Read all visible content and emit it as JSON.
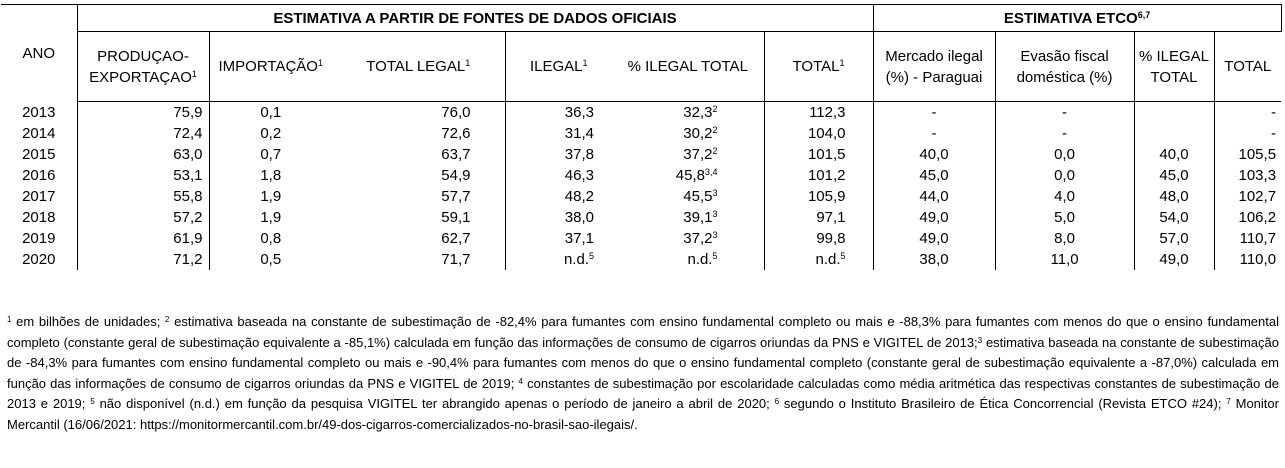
{
  "group_headers": {
    "official": "ESTIMATIVA A PARTIR DE FONTES DE DADOS OFICIAIS",
    "etco": "ESTIMATIVA ETCO",
    "etco_sup": "6,7"
  },
  "columns": {
    "ano": "ANO",
    "producao": "PRODUÇAO-EXPORTAÇAO",
    "producao_sup": "1",
    "importacao": "IMPORTAÇÃO",
    "importacao_sup": "1",
    "total_legal": "TOTAL LEGAL",
    "total_legal_sup": "1",
    "ilegal": "ILEGAL",
    "ilegal_sup": "1",
    "pct_ilegal_total": "% ILEGAL TOTAL",
    "total": "TOTAL",
    "total_sup": "1",
    "mercado": "Mercado ilegal (%) - Paraguai",
    "evasao": "Evasão fiscal doméstica (%)",
    "etco_pct_ilegal": "% ILEGAL TOTAL",
    "etco_total": "TOTAL"
  },
  "rows": [
    {
      "ano": "2013",
      "producao": "75,9",
      "importacao": "0,1",
      "total_legal": "76,0",
      "ilegal": "36,3",
      "ilegal_sup": "",
      "pct": "32,3",
      "pct_sup": "2",
      "total": "112,3",
      "total_sup": "",
      "mercado": "-",
      "evasao": "-",
      "etco_pct": "",
      "etco_total": "-"
    },
    {
      "ano": "2014",
      "producao": "72,4",
      "importacao": "0,2",
      "total_legal": "72,6",
      "ilegal": "31,4",
      "ilegal_sup": "",
      "pct": "30,2",
      "pct_sup": "2",
      "total": "104,0",
      "total_sup": "",
      "mercado": "-",
      "evasao": "-",
      "etco_pct": "",
      "etco_total": "-"
    },
    {
      "ano": "2015",
      "producao": "63,0",
      "importacao": "0,7",
      "total_legal": "63,7",
      "ilegal": "37,8",
      "ilegal_sup": "",
      "pct": "37,2",
      "pct_sup": "2",
      "total": "101,5",
      "total_sup": "",
      "mercado": "40,0",
      "evasao": "0,0",
      "etco_pct": "40,0",
      "etco_total": "105,5"
    },
    {
      "ano": "2016",
      "producao": "53,1",
      "importacao": "1,8",
      "total_legal": "54,9",
      "ilegal": "46,3",
      "ilegal_sup": "",
      "pct": "45,8",
      "pct_sup": "3,4",
      "total": "101,2",
      "total_sup": "",
      "mercado": "45,0",
      "evasao": "0,0",
      "etco_pct": "45,0",
      "etco_total": "103,3"
    },
    {
      "ano": "2017",
      "producao": "55,8",
      "importacao": "1,9",
      "total_legal": "57,7",
      "ilegal": "48,2",
      "ilegal_sup": "",
      "pct": "45,5",
      "pct_sup": "3",
      "total": "105,9",
      "total_sup": "",
      "mercado": "44,0",
      "evasao": "4,0",
      "etco_pct": "48,0",
      "etco_total": "102,7"
    },
    {
      "ano": "2018",
      "producao": "57,2",
      "importacao": "1,9",
      "total_legal": "59,1",
      "ilegal": "38,0",
      "ilegal_sup": "",
      "pct": "39,1",
      "pct_sup": "3",
      "total": "97,1",
      "total_sup": "",
      "mercado": "49,0",
      "evasao": "5,0",
      "etco_pct": "54,0",
      "etco_total": "106,2"
    },
    {
      "ano": "2019",
      "producao": "61,9",
      "importacao": "0,8",
      "total_legal": "62,7",
      "ilegal": "37,1",
      "ilegal_sup": "",
      "pct": "37,2",
      "pct_sup": "3",
      "total": "99,8",
      "total_sup": "",
      "mercado": "49,0",
      "evasao": "8,0",
      "etco_pct": "57,0",
      "etco_total": "110,7"
    },
    {
      "ano": "2020",
      "producao": "71,2",
      "importacao": "0,5",
      "total_legal": "71,7",
      "ilegal": "n.d.",
      "ilegal_sup": "5",
      "pct": "n.d.",
      "pct_sup": "5",
      "total": "n.d.",
      "total_sup": "5",
      "mercado": "38,0",
      "evasao": "11,0",
      "etco_pct": "49,0",
      "etco_total": "110,0"
    }
  ],
  "footnotes": [
    {
      "sup": "1",
      "text": " em bilhões de unidades; "
    },
    {
      "sup": "2",
      "text": " estimativa baseada na constante de subestimação de -82,4% para fumantes com ensino fundamental completo ou mais e -88,3% para fumantes com menos do que o ensino fundamental completo (constante geral de subestimação equivalente a -85,1%) calculada em função das informações de consumo de cigarros oriundas da PNS e VIGITEL de 2013;"
    },
    {
      "sup": "3",
      "text": " estimativa baseada na constante de subestimação de -84,3% para fumantes com ensino fundamental completo ou mais e -90,4% para fumantes com menos do que o ensino fundamental completo (constante geral de subestimação equivalente a -87,0%) calculada em função das informações de consumo de cigarros oriundas da PNS e VIGITEL de 2019; "
    },
    {
      "sup": "4",
      "text": " constantes de subestimação por escolaridade calculadas como média aritmética das respectivas constantes de subestimação de 2013 e 2019; "
    },
    {
      "sup": "5",
      "text": " não disponível (n.d.) em função da pesquisa VIGITEL ter abrangido apenas o período de janeiro a abril de 2020; "
    },
    {
      "sup": "6",
      "text": " segundo o Instituto Brasileiro de Ética Concorrencial (Revista ETCO #24); "
    },
    {
      "sup": "7",
      "text": " Monitor Mercantil (16/06/2021: https://monitormercantil.com.br/49-dos-cigarros-comercializados-no-brasil-sao-ilegais/."
    }
  ]
}
